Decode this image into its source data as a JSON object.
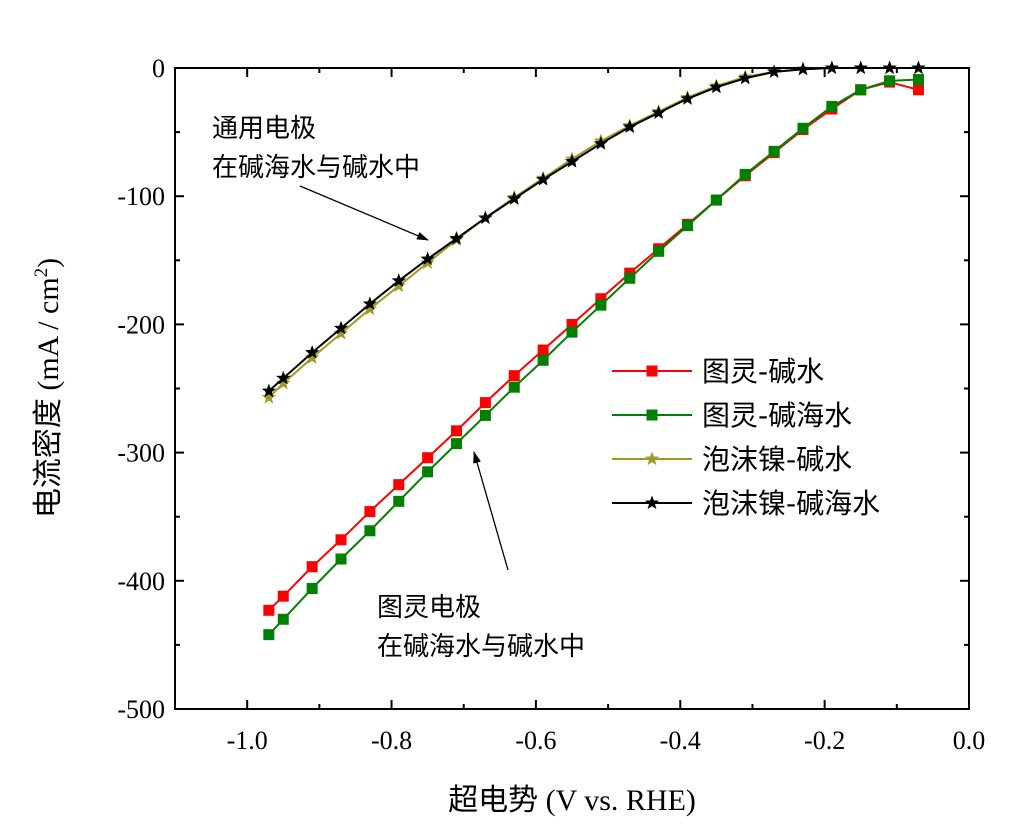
{
  "chart_data": {
    "type": "line",
    "xlabel": "超电势 (V vs. RHE)",
    "ylabel": "电流密度 (mA / cm",
    "ylabel_sup": "2",
    "ylabel_close": ")",
    "xlim": [
      -1.1,
      0.0
    ],
    "ylim": [
      -500,
      0
    ],
    "x_ticks": [
      -1.0,
      -0.8,
      -0.6,
      -0.4,
      -0.2,
      0.0
    ],
    "x_tick_labels": [
      "-1.0",
      "-0.8",
      "-0.6",
      "-0.4",
      "-0.2",
      "0.0"
    ],
    "y_ticks": [
      0,
      -100,
      -200,
      -300,
      -400,
      -500
    ],
    "y_tick_labels": [
      "0",
      "-100",
      "-200",
      "-300",
      "-400",
      "-500"
    ],
    "legend_position": "right",
    "series": [
      {
        "name": "图灵-碱水",
        "color": "#ff0000",
        "marker": "square",
        "x": [
          -0.97,
          -0.95,
          -0.91,
          -0.87,
          -0.83,
          -0.79,
          -0.75,
          -0.71,
          -0.67,
          -0.63,
          -0.59,
          -0.55,
          -0.51,
          -0.47,
          -0.43,
          -0.39,
          -0.35,
          -0.31,
          -0.27,
          -0.23,
          -0.19,
          -0.15,
          -0.11,
          -0.07
        ],
        "y": [
          -423,
          -412,
          -389,
          -368,
          -346,
          -325,
          -304,
          -283,
          -261,
          -240,
          -220,
          -200,
          -180,
          -160,
          -141,
          -122,
          -103,
          -84,
          -66,
          -48,
          -32,
          -17,
          -11,
          -17
        ]
      },
      {
        "name": "图灵-碱海水",
        "color": "#008000",
        "marker": "square",
        "x": [
          -0.97,
          -0.95,
          -0.91,
          -0.87,
          -0.83,
          -0.79,
          -0.75,
          -0.71,
          -0.67,
          -0.63,
          -0.59,
          -0.55,
          -0.51,
          -0.47,
          -0.43,
          -0.39,
          -0.35,
          -0.31,
          -0.27,
          -0.23,
          -0.19,
          -0.15,
          -0.11,
          -0.07
        ],
        "y": [
          -442,
          -430,
          -406,
          -383,
          -361,
          -338,
          -315,
          -293,
          -271,
          -249,
          -228,
          -206,
          -185,
          -164,
          -143,
          -123,
          -103,
          -83,
          -65,
          -47,
          -30,
          -17,
          -10,
          -9
        ]
      },
      {
        "name": "泡沫镍-碱水",
        "color": "#a09a20",
        "marker": "star",
        "x": [
          -0.97,
          -0.95,
          -0.91,
          -0.87,
          -0.83,
          -0.79,
          -0.75,
          -0.71,
          -0.67,
          -0.63,
          -0.59,
          -0.55,
          -0.51,
          -0.47,
          -0.43,
          -0.39,
          -0.35,
          -0.31,
          -0.27,
          -0.23,
          -0.19,
          -0.15,
          -0.11,
          -0.07
        ],
        "y": [
          -257,
          -246,
          -226,
          -207,
          -188,
          -170,
          -152,
          -134,
          -117,
          -101,
          -86,
          -71,
          -57,
          -45,
          -34,
          -23,
          -14,
          -7,
          -3,
          -1,
          0,
          0,
          0,
          0
        ]
      },
      {
        "name": "泡沫镍-碱海水",
        "color": "#000000",
        "marker": "star",
        "x": [
          -0.97,
          -0.95,
          -0.91,
          -0.87,
          -0.83,
          -0.79,
          -0.75,
          -0.71,
          -0.67,
          -0.63,
          -0.59,
          -0.55,
          -0.51,
          -0.47,
          -0.43,
          -0.39,
          -0.35,
          -0.31,
          -0.27,
          -0.23,
          -0.19,
          -0.15,
          -0.11,
          -0.07
        ],
        "y": [
          -252,
          -242,
          -222,
          -203,
          -184,
          -166,
          -149,
          -133,
          -117,
          -102,
          -87,
          -73,
          -59,
          -46,
          -35,
          -24,
          -15,
          -8,
          -3,
          -1,
          0,
          0,
          0,
          0
        ]
      }
    ],
    "annotations": [
      {
        "lines": [
          "通用电极",
          "在碱海水与碱水中"
        ]
      },
      {
        "lines": [
          "图灵电极",
          "在碱海水与碱水中"
        ]
      }
    ]
  }
}
